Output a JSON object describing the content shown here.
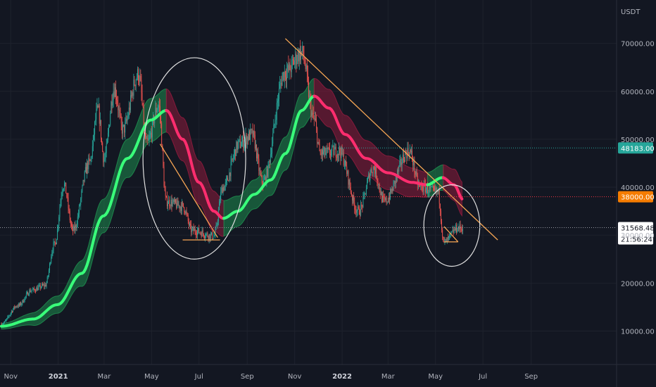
{
  "chart_data": {
    "type": "candlestick",
    "currency": "USDT",
    "y_ticks": [
      10000,
      20000,
      30000,
      40000,
      50000,
      60000,
      70000
    ],
    "y_tick_labels": [
      "10000.00",
      "20000.00",
      "30000.00",
      "40000.00",
      "50000.00",
      "60000.00",
      "70000.00"
    ],
    "x_labels": [
      {
        "label": "Nov",
        "date": "2020-11-01",
        "bold": false
      },
      {
        "label": "2021",
        "date": "2021-01-01",
        "bold": true
      },
      {
        "label": "Mar",
        "date": "2021-03-01",
        "bold": false
      },
      {
        "label": "May",
        "date": "2021-05-01",
        "bold": false
      },
      {
        "label": "Jul",
        "date": "2021-07-01",
        "bold": false
      },
      {
        "label": "Sep",
        "date": "2021-09-01",
        "bold": false
      },
      {
        "label": "Nov",
        "date": "2021-11-01",
        "bold": false
      },
      {
        "label": "2022",
        "date": "2022-01-01",
        "bold": true
      },
      {
        "label": "Mar",
        "date": "2022-03-01",
        "bold": false
      },
      {
        "label": "May",
        "date": "2022-05-01",
        "bold": false
      },
      {
        "label": "Jul",
        "date": "2022-07-01",
        "bold": false
      },
      {
        "label": "Sep",
        "date": "2022-09-01",
        "bold": false
      }
    ],
    "price_path": [
      [
        "2020-10-20",
        11500
      ],
      [
        "2020-11-10",
        15300
      ],
      [
        "2020-11-28",
        18500
      ],
      [
        "2020-12-15",
        19500
      ],
      [
        "2020-12-27",
        28000
      ],
      [
        "2021-01-08",
        40500
      ],
      [
        "2021-01-20",
        31000
      ],
      [
        "2021-02-10",
        45000
      ],
      [
        "2021-02-21",
        56000
      ],
      [
        "2021-03-01",
        46000
      ],
      [
        "2021-03-14",
        60500
      ],
      [
        "2021-03-25",
        52000
      ],
      [
        "2021-04-14",
        63500
      ],
      [
        "2021-04-25",
        49000
      ],
      [
        "2021-05-10",
        57000
      ],
      [
        "2021-05-20",
        37000
      ],
      [
        "2021-06-10",
        36000
      ],
      [
        "2021-06-22",
        31000
      ],
      [
        "2021-07-20",
        29800
      ],
      [
        "2021-08-01",
        40000
      ],
      [
        "2021-08-22",
        49000
      ],
      [
        "2021-09-07",
        51000
      ],
      [
        "2021-09-21",
        41000
      ],
      [
        "2021-10-20",
        64000
      ],
      [
        "2021-11-10",
        68000
      ],
      [
        "2021-11-26",
        54000
      ],
      [
        "2021-12-04",
        47000
      ],
      [
        "2021-12-28",
        47500
      ],
      [
        "2022-01-22",
        35000
      ],
      [
        "2022-02-10",
        44000
      ],
      [
        "2022-02-24",
        37000
      ],
      [
        "2022-03-28",
        47500
      ],
      [
        "2022-04-11",
        40000
      ],
      [
        "2022-05-04",
        39000
      ],
      [
        "2022-05-12",
        28500
      ],
      [
        "2022-05-30",
        31500
      ],
      [
        "2022-06-05",
        31568
      ]
    ],
    "moving_average_band": {
      "center": [
        [
          "2020-10-20",
          11000
        ],
        [
          "2020-11-30",
          12500
        ],
        [
          "2020-12-31",
          15500
        ],
        [
          "2021-01-31",
          22000
        ],
        [
          "2021-02-28",
          34000
        ],
        [
          "2021-03-31",
          46000
        ],
        [
          "2021-04-30",
          54000
        ],
        [
          "2021-05-20",
          56000
        ],
        [
          "2021-06-10",
          50000
        ],
        [
          "2021-07-01",
          41000
        ],
        [
          "2021-07-20",
          35000
        ],
        [
          "2021-08-01",
          33500
        ],
        [
          "2021-08-20",
          35000
        ],
        [
          "2021-09-10",
          38500
        ],
        [
          "2021-10-01",
          41500
        ],
        [
          "2021-10-20",
          47000
        ],
        [
          "2021-11-10",
          56000
        ],
        [
          "2021-11-26",
          59000
        ],
        [
          "2021-12-15",
          56500
        ],
        [
          "2022-01-05",
          51000
        ],
        [
          "2022-02-01",
          46000
        ],
        [
          "2022-03-01",
          43000
        ],
        [
          "2022-04-01",
          41000
        ],
        [
          "2022-04-20",
          40500
        ],
        [
          "2022-05-10",
          42000
        ],
        [
          "2022-05-25",
          40500
        ],
        [
          "2022-06-05",
          37500
        ]
      ],
      "half_width": [
        [
          "2020-10-20",
          600
        ],
        [
          "2021-01-01",
          1800
        ],
        [
          "2021-03-01",
          3500
        ],
        [
          "2021-05-01",
          4500
        ],
        [
          "2021-07-01",
          4500
        ],
        [
          "2021-09-01",
          3000
        ],
        [
          "2021-11-01",
          3500
        ],
        [
          "2022-01-01",
          4000
        ],
        [
          "2022-03-01",
          3500
        ],
        [
          "2022-05-01",
          2500
        ],
        [
          "2022-06-05",
          3500
        ]
      ],
      "falling_ranges": [
        [
          "2021-05-20",
          "2021-08-01"
        ],
        [
          "2021-11-26",
          "2022-04-20"
        ],
        [
          "2022-05-10",
          "2022-06-05"
        ]
      ]
    },
    "trendlines": [
      {
        "from": [
          "2021-10-20",
          71000
        ],
        "to": [
          "2022-07-20",
          29000
        ]
      },
      {
        "from": [
          "2021-05-12",
          49000
        ],
        "to": [
          "2021-07-25",
          29500
        ]
      },
      {
        "from": [
          "2021-06-10",
          29000
        ],
        "to": [
          "2021-07-28",
          29000
        ]
      },
      {
        "from": [
          "2022-05-12",
          31800
        ],
        "to": [
          "2022-05-30",
          28600
        ]
      },
      {
        "from": [
          "2022-05-12",
          28600
        ],
        "to": [
          "2022-05-30",
          28600
        ]
      }
    ],
    "ellipses": [
      {
        "center": [
          "2021-06-25",
          46000
        ],
        "radius_days": 66,
        "radius_price_half_height": 21000
      },
      {
        "center": [
          "2022-05-22",
          32000
        ],
        "radius_days": 36,
        "radius_price_half_height": 8500
      }
    ],
    "price_lines": [
      {
        "value": 48183,
        "label": "48183.00",
        "color": "#26a69a",
        "style": "dotted",
        "tag_bg": "#26a69a"
      },
      {
        "value": 38000,
        "label": "38000.00",
        "color": "#f23645",
        "style": "dotted",
        "tag_bg": "#f57c00"
      },
      {
        "value": 31568.48,
        "label": "31568.48",
        "color": "#9598a1",
        "style": "dotted",
        "tag_bg": "#ffffff"
      }
    ],
    "countdown": "21:56:24",
    "grid": true,
    "legend": "none"
  },
  "colors": {
    "background": "#131722",
    "grid": "#1e222d",
    "candle_up": "#26a69a",
    "candle_down": "#ef5350",
    "band_up_fill": "#1e8c4e",
    "band_down_fill": "#8e1b3d",
    "ma_up": "#39ff7a",
    "ma_down": "#ff2d6e",
    "trendline": "#f7a654",
    "ellipse": "#e0e0e0"
  }
}
